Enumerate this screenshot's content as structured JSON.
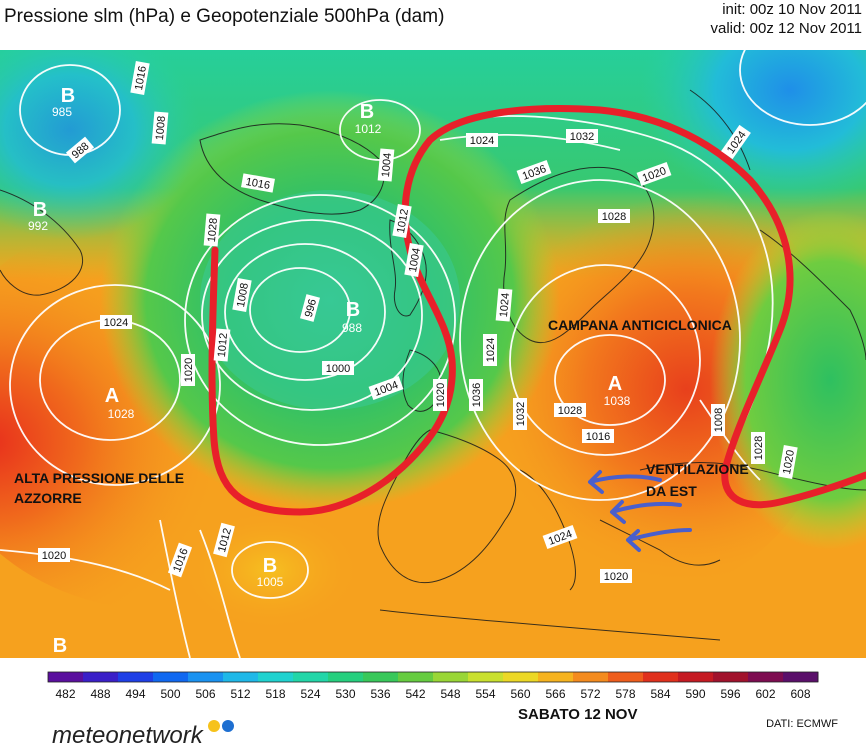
{
  "header": {
    "title": "Pressione slm (hPa) e Geopotenziale 500hPa (dam)",
    "init": "init: 00z 10 Nov 2011",
    "valid": "valid: 00z 12 Nov 2011"
  },
  "map": {
    "centers": [
      {
        "type": "B",
        "value": "985"
      },
      {
        "type": "B",
        "value": "1012"
      },
      {
        "type": "B",
        "value": "992"
      },
      {
        "type": "B",
        "value": "988"
      },
      {
        "type": "A",
        "value": "1028"
      },
      {
        "type": "B",
        "value": "1005"
      },
      {
        "type": "A",
        "value": "1038"
      },
      {
        "type": "B",
        "value": ""
      }
    ],
    "isobar_labels": [
      "1016",
      "1008",
      "988",
      "1016",
      "1008",
      "996",
      "1000",
      "1004",
      "1012",
      "1024",
      "1020",
      "1028",
      "1024",
      "1032",
      "1036",
      "1020",
      "1028",
      "1036",
      "1032",
      "1028",
      "1024",
      "1020",
      "1016",
      "1012",
      "1004",
      "1020",
      "1016",
      "1008",
      "1024",
      "1028",
      "1020",
      "1024",
      "1020",
      "1012",
      "1004",
      "1024"
    ],
    "annotations": {
      "azzorre": [
        "ALTA PRESSIONE DELLE",
        "AZZORRE"
      ],
      "campana": "CAMPANA ANTICICLONICA",
      "ventilazione": [
        "VENTILAZIONE",
        "DA EST"
      ]
    },
    "colors": {
      "outline": "#e8202a",
      "arrows": "#4a5fcc",
      "isobar": "#ffffff",
      "coast": "#1a1a1a"
    }
  },
  "colorbar": {
    "ticks": [
      "482",
      "488",
      "494",
      "500",
      "506",
      "512",
      "518",
      "524",
      "530",
      "536",
      "542",
      "548",
      "554",
      "560",
      "566",
      "572",
      "578",
      "584",
      "590",
      "596",
      "602",
      "608"
    ],
    "colors": [
      "#5a0f9e",
      "#3a1fc8",
      "#1e3fe6",
      "#1068f0",
      "#1a92f0",
      "#1fb8e8",
      "#20d2cf",
      "#22d6a8",
      "#26cf7e",
      "#38c85a",
      "#66cc40",
      "#99d636",
      "#c9e02e",
      "#ecd826",
      "#f6b31f",
      "#f48b1e",
      "#ee5d1c",
      "#e0301c",
      "#c51a22",
      "#a1122c",
      "#7d0c50",
      "#5a0f6a"
    ]
  },
  "footer": {
    "date": "SABATO 12 NOV",
    "source": "DATI:  ECMWF",
    "logo": "meteonetwork",
    "logo_colors": [
      "#f6c21b",
      "#1e6fd1"
    ]
  }
}
